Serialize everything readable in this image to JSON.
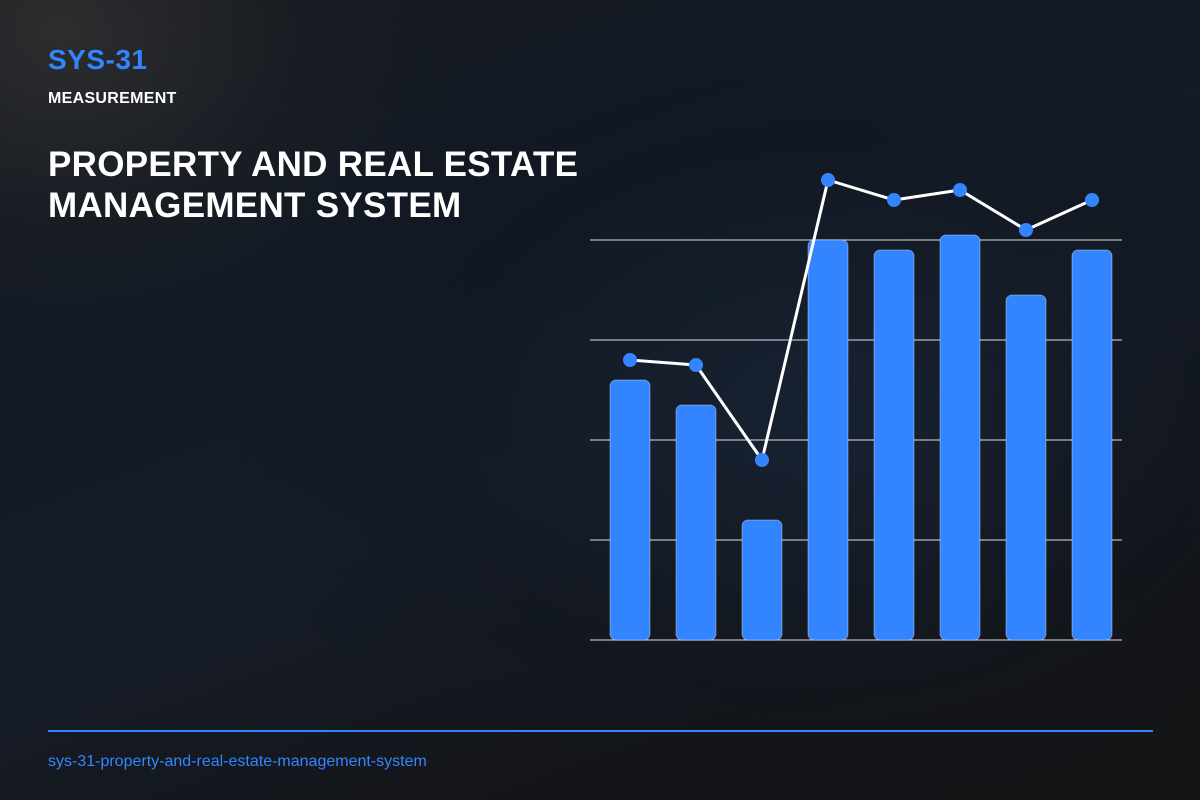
{
  "header": {
    "brand": "SYS-31",
    "category": "MEASUREMENT",
    "title": "PROPERTY AND REAL ESTATE MANAGEMENT SYSTEM"
  },
  "footer": {
    "slug": "sys-31-property-and-real-estate-management-system"
  },
  "colors": {
    "accent": "#3385ff",
    "line": "#ffffff",
    "gridline": "#ffffff"
  },
  "chart_data": {
    "type": "bar",
    "title": "",
    "xlabel": "",
    "ylabel": "",
    "ylim": [
      0,
      100
    ],
    "grid": true,
    "legend": "none",
    "categories": [
      "",
      "",
      "",
      "",
      "",
      "",
      "",
      ""
    ],
    "series": [
      {
        "type": "bar",
        "values": [
          52,
          47,
          24,
          80,
          78,
          81,
          69,
          78
        ]
      },
      {
        "type": "line",
        "values": [
          56,
          55,
          36,
          92,
          88,
          90,
          82,
          88
        ]
      }
    ]
  }
}
